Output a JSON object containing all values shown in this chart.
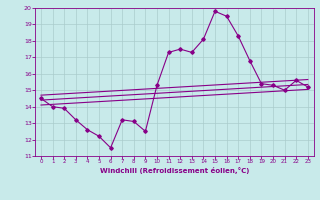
{
  "title": "",
  "xlabel": "Windchill (Refroidissement éolien,°C)",
  "bg_color": "#c8eaea",
  "grid_color": "#aacccc",
  "line_color": "#880088",
  "xlim": [
    -0.5,
    23.5
  ],
  "ylim": [
    11,
    20
  ],
  "xticks": [
    0,
    1,
    2,
    3,
    4,
    5,
    6,
    7,
    8,
    9,
    10,
    11,
    12,
    13,
    14,
    15,
    16,
    17,
    18,
    19,
    20,
    21,
    22,
    23
  ],
  "yticks": [
    11,
    12,
    13,
    14,
    15,
    16,
    17,
    18,
    19,
    20
  ],
  "line1_x": [
    0,
    1,
    2,
    3,
    4,
    5,
    6,
    7,
    8,
    9,
    10,
    11,
    12,
    13,
    14,
    15,
    16,
    17,
    18,
    19,
    20,
    21,
    22,
    23
  ],
  "line1_y": [
    14.5,
    14.0,
    13.9,
    13.2,
    12.6,
    12.2,
    11.5,
    13.2,
    13.1,
    12.5,
    15.3,
    17.3,
    17.5,
    17.3,
    18.1,
    19.8,
    19.5,
    18.3,
    16.8,
    15.4,
    15.3,
    15.0,
    15.6,
    15.2
  ],
  "line2_x": [
    0,
    23
  ],
  "line2_y": [
    14.1,
    15.05
  ],
  "line3_x": [
    0,
    23
  ],
  "line3_y": [
    14.4,
    15.35
  ],
  "line4_x": [
    0,
    23
  ],
  "line4_y": [
    14.7,
    15.65
  ]
}
